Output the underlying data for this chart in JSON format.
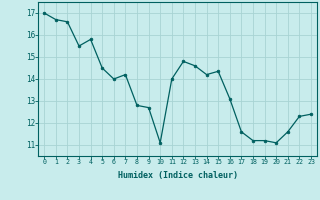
{
  "x": [
    0,
    1,
    2,
    3,
    4,
    5,
    6,
    7,
    8,
    9,
    10,
    11,
    12,
    13,
    14,
    15,
    16,
    17,
    18,
    19,
    20,
    21,
    22,
    23
  ],
  "y": [
    17.0,
    16.7,
    16.6,
    15.5,
    15.8,
    14.5,
    14.0,
    14.2,
    12.8,
    12.7,
    11.1,
    14.0,
    14.8,
    14.6,
    14.2,
    14.35,
    13.1,
    11.6,
    11.2,
    11.2,
    11.1,
    11.6,
    12.3,
    12.4
  ],
  "xlabel": "Humidex (Indice chaleur)",
  "ylim": [
    10.5,
    17.5
  ],
  "xlim": [
    -0.5,
    23.5
  ],
  "yticks": [
    11,
    12,
    13,
    14,
    15,
    16,
    17
  ],
  "xticks": [
    0,
    1,
    2,
    3,
    4,
    5,
    6,
    7,
    8,
    9,
    10,
    11,
    12,
    13,
    14,
    15,
    16,
    17,
    18,
    19,
    20,
    21,
    22,
    23
  ],
  "line_color": "#006060",
  "marker_color": "#006060",
  "bg_color": "#c8ecec",
  "grid_color": "#a8d4d4",
  "axis_color": "#006060",
  "tick_color": "#006060",
  "xlabel_color": "#006060"
}
